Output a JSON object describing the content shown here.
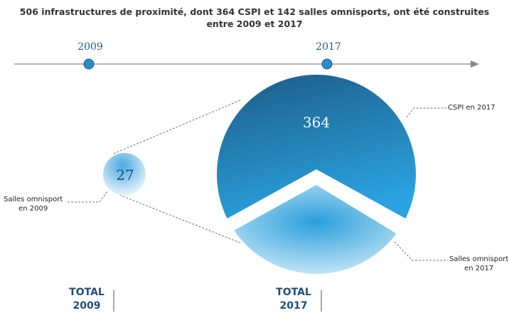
{
  "title": "506 infrastructures de proximité, dont 364 CSPI et 142 salles omnisports, ont été construites entre 2009 et 2017",
  "timeline": {
    "years": [
      "2009",
      "2017"
    ]
  },
  "bubbles": {
    "small": {
      "value": "27",
      "label": [
        "Salles omnisport",
        "en 2009"
      ]
    },
    "large_top": {
      "value": "364",
      "label": [
        "CSPI en 2017"
      ]
    },
    "large_bottom": {
      "label": [
        "Salles omnisport",
        "en 2017"
      ]
    }
  },
  "totals": [
    [
      "TOTAL",
      "2009"
    ],
    [
      "TOTAL",
      "2017"
    ]
  ]
}
